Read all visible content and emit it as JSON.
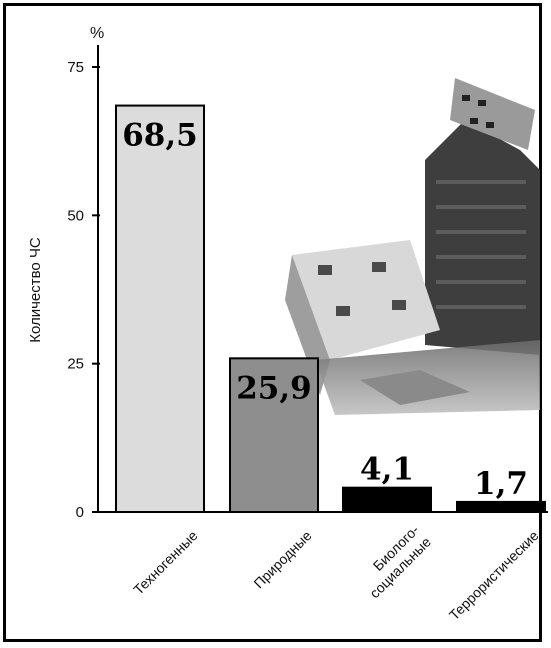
{
  "chart_data": {
    "type": "bar",
    "unit_label": "%",
    "ylabel": "Количество ЧС",
    "ylim": [
      0,
      75
    ],
    "yticks": [
      0,
      25,
      50,
      75
    ],
    "categories": [
      [
        "Техногенные"
      ],
      [
        "Природные"
      ],
      [
        "Биолого-",
        "социальные"
      ],
      [
        "Террористические"
      ]
    ],
    "values": [
      68.5,
      25.9,
      4.1,
      1.7
    ],
    "value_labels": [
      "68,5",
      "25,9",
      "4,1",
      "1,7"
    ],
    "bar_colors": [
      "#dcdcdc",
      "#8e8e8e",
      "#000000",
      "#000000"
    ],
    "background_image": "collapsed-building-photo"
  }
}
